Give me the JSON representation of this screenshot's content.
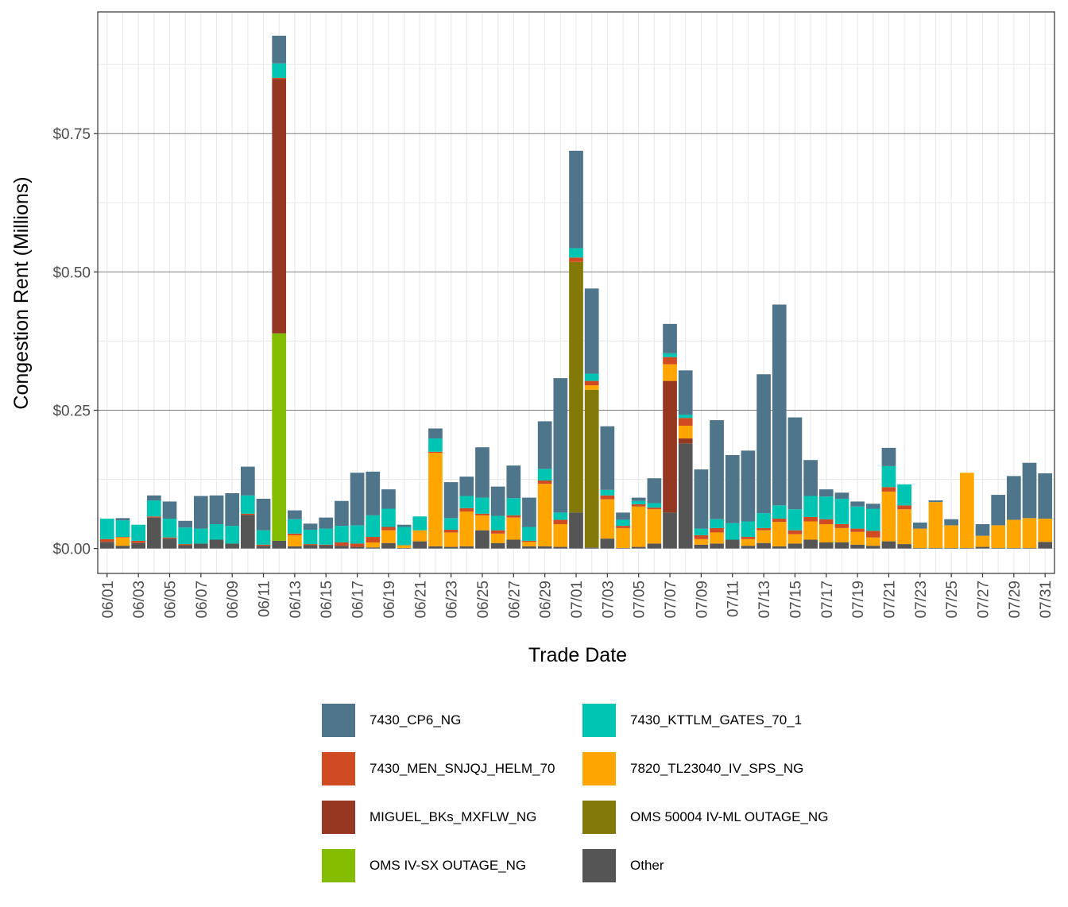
{
  "chart_data": {
    "type": "bar",
    "stacked": true,
    "title": "",
    "xlabel": "Trade Date",
    "ylabel": "Congestion Rent (Millions)",
    "ylim": [
      -0.045,
      0.97
    ],
    "yticks": [
      0,
      0.25,
      0.5,
      0.75
    ],
    "ytick_labels": [
      "$0.00",
      "$0.25",
      "$0.50",
      "$0.75"
    ],
    "grid": true,
    "legend_position": "bottom",
    "categories": [
      "06/01",
      "06/02",
      "06/03",
      "06/04",
      "06/05",
      "06/06",
      "06/07",
      "06/08",
      "06/09",
      "06/10",
      "06/11",
      "06/12",
      "06/13",
      "06/14",
      "06/15",
      "06/16",
      "06/17",
      "06/18",
      "06/19",
      "06/20",
      "06/21",
      "06/22",
      "06/23",
      "06/24",
      "06/25",
      "06/26",
      "06/27",
      "06/28",
      "06/29",
      "06/30",
      "07/01",
      "07/02",
      "07/03",
      "07/04",
      "07/05",
      "07/06",
      "07/07",
      "07/08",
      "07/09",
      "07/10",
      "07/11",
      "07/12",
      "07/13",
      "07/14",
      "07/15",
      "07/16",
      "07/17",
      "07/18",
      "07/19",
      "07/20",
      "07/21",
      "07/22",
      "07/23",
      "07/24",
      "07/25",
      "07/26",
      "07/27",
      "07/28",
      "07/29",
      "07/30",
      "07/31"
    ],
    "xtick_labels": [
      "06/01",
      "06/03",
      "06/05",
      "06/07",
      "06/09",
      "06/11",
      "06/13",
      "06/15",
      "06/17",
      "06/19",
      "06/21",
      "06/23",
      "06/25",
      "06/27",
      "06/29",
      "07/01",
      "07/03",
      "07/05",
      "07/07",
      "07/09",
      "07/11",
      "07/13",
      "07/15",
      "07/17",
      "07/19",
      "07/21",
      "07/23",
      "07/25",
      "07/27",
      "07/29",
      "07/31"
    ],
    "series": [
      {
        "name": "Other",
        "color": "#555555",
        "values": [
          0.012,
          0.005,
          0.01,
          0.056,
          0.018,
          0.006,
          0.009,
          0.016,
          0.009,
          0.061,
          0.005,
          0.014,
          0.004,
          0.006,
          0.006,
          0.005,
          0.003,
          0.002,
          0.01,
          0.001,
          0.013,
          0.004,
          0.003,
          0.004,
          0.033,
          0.01,
          0.016,
          0.004,
          0.004,
          0.003,
          0.065,
          0.002,
          0.018,
          0.001,
          0.003,
          0.009,
          0.065,
          0.19,
          0.007,
          0.009,
          0.016,
          0.005,
          0.01,
          0.004,
          0.009,
          0.016,
          0.011,
          0.011,
          0.007,
          0.005,
          0.013,
          0.008,
          0.001,
          0.001,
          0.001,
          0.001,
          0.003,
          0.001,
          0.001,
          0.001,
          0.012
        ]
      },
      {
        "name": "OMS IV-SX OUTAGE_NG",
        "color": "#84bc00",
        "values": [
          0,
          0,
          0,
          0,
          0,
          0,
          0,
          0,
          0,
          0,
          0,
          0.375,
          0,
          0,
          0,
          0,
          0,
          0,
          0,
          0,
          0,
          0,
          0,
          0,
          0,
          0,
          0,
          0,
          0,
          0,
          0,
          0,
          0,
          0,
          0,
          0,
          0,
          0,
          0,
          0,
          0,
          0,
          0,
          0,
          0,
          0,
          0,
          0,
          0,
          0,
          0,
          0,
          0,
          0,
          0,
          0,
          0,
          0,
          0,
          0,
          0
        ]
      },
      {
        "name": "MIGUEL_BKs_MXFLW_NG",
        "color": "#963721",
        "values": [
          0,
          0,
          0,
          0,
          0,
          0,
          0,
          0,
          0,
          0,
          0,
          0.46,
          0,
          0,
          0,
          0,
          0,
          0,
          0,
          0,
          0,
          0,
          0,
          0,
          0,
          0,
          0,
          0,
          0,
          0,
          0,
          0,
          0,
          0,
          0,
          0,
          0.238,
          0.009,
          0,
          0,
          0,
          0,
          0,
          0,
          0,
          0,
          0,
          0,
          0,
          0,
          0,
          0,
          0,
          0,
          0,
          0,
          0,
          0,
          0,
          0,
          0
        ]
      },
      {
        "name": "OMS 50004 IV-ML OUTAGE_NG",
        "color": "#837906",
        "values": [
          0,
          0,
          0,
          0,
          0,
          0,
          0,
          0,
          0,
          0,
          0,
          0,
          0,
          0,
          0,
          0,
          0,
          0,
          0,
          0,
          0,
          0,
          0,
          0,
          0,
          0,
          0,
          0,
          0,
          0,
          0.453,
          0.285,
          0,
          0,
          0,
          0,
          0,
          0,
          0,
          0,
          0,
          0,
          0,
          0,
          0,
          0,
          0,
          0,
          0,
          0,
          0,
          0,
          0,
          0,
          0,
          0,
          0,
          0,
          0,
          0,
          0
        ]
      },
      {
        "name": "7820_TL23040_IV_SPS_NG",
        "color": "#ffa500",
        "values": [
          0,
          0.015,
          0,
          0,
          0,
          0,
          0,
          0,
          0,
          0,
          0,
          0,
          0.02,
          0,
          0,
          0,
          0,
          0.009,
          0.023,
          0.005,
          0.02,
          0.169,
          0.026,
          0.063,
          0.027,
          0.017,
          0.04,
          0.008,
          0.113,
          0.041,
          0,
          0.008,
          0.071,
          0.036,
          0.073,
          0.062,
          0.03,
          0.023,
          0.01,
          0.02,
          0,
          0.012,
          0.023,
          0.044,
          0.017,
          0.033,
          0.033,
          0.026,
          0.023,
          0.015,
          0.09,
          0.063,
          0.035,
          0.083,
          0.041,
          0.136,
          0.02,
          0.041,
          0.051,
          0.054,
          0.042
        ]
      },
      {
        "name": "7430_MEN_SNJQJ_HELM_70",
        "color": "#d04b22",
        "values": [
          0.005,
          0.001,
          0.004,
          0.002,
          0.002,
          0.002,
          0,
          0,
          0,
          0.002,
          0.002,
          0.002,
          0.003,
          0.002,
          0.001,
          0.006,
          0.006,
          0.01,
          0.006,
          0,
          0,
          0.002,
          0.005,
          0.006,
          0.003,
          0.006,
          0.004,
          0.002,
          0.006,
          0.008,
          0.008,
          0.008,
          0.007,
          0.004,
          0.004,
          0.003,
          0.013,
          0.014,
          0.007,
          0.008,
          0,
          0.004,
          0.004,
          0.006,
          0.007,
          0.008,
          0.009,
          0.007,
          0.006,
          0.012,
          0.008,
          0.007,
          0,
          0,
          0,
          0,
          0,
          0,
          0,
          0,
          0
        ]
      },
      {
        "name": "7430_KTTLM_GATES_70_1",
        "color": "#00c5b2",
        "values": [
          0.037,
          0.03,
          0.029,
          0.029,
          0.034,
          0.03,
          0.027,
          0.028,
          0.032,
          0.033,
          0.026,
          0.026,
          0.026,
          0.026,
          0.029,
          0.03,
          0.033,
          0.039,
          0.033,
          0.033,
          0.025,
          0.024,
          0.021,
          0.022,
          0.029,
          0.026,
          0.031,
          0.025,
          0.021,
          0.013,
          0.017,
          0.013,
          0.01,
          0.011,
          0.006,
          0.008,
          0.007,
          0.006,
          0.012,
          0.016,
          0.03,
          0.028,
          0.027,
          0.024,
          0.038,
          0.038,
          0.041,
          0.046,
          0.04,
          0.04,
          0.038,
          0.038,
          0,
          0,
          0,
          0,
          0,
          0,
          0,
          0,
          0
        ]
      },
      {
        "name": "7430_CP6_NG",
        "color": "#4f758b",
        "values": [
          0,
          0.004,
          0,
          0.009,
          0.031,
          0.012,
          0.059,
          0.052,
          0.059,
          0.052,
          0.057,
          0.05,
          0.016,
          0.011,
          0.02,
          0.045,
          0.095,
          0.079,
          0.035,
          0.004,
          0,
          0.018,
          0.065,
          0.035,
          0.091,
          0.053,
          0.059,
          0.053,
          0.086,
          0.243,
          0.176,
          0.154,
          0.115,
          0.013,
          0.006,
          0.045,
          0.053,
          0.08,
          0.107,
          0.179,
          0.123,
          0.128,
          0.251,
          0.363,
          0.166,
          0.065,
          0.013,
          0.011,
          0.009,
          0.009,
          0.033,
          0,
          0.011,
          0.003,
          0.011,
          0,
          0.021,
          0.055,
          0.079,
          0.1,
          0.082
        ]
      }
    ]
  }
}
